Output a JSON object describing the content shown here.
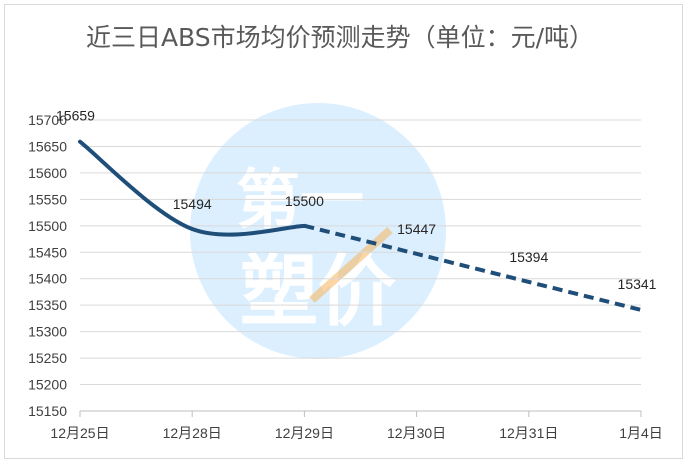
{
  "chart_data": {
    "type": "line",
    "title": "近三日ABS市场均价预测走势（单位：元/吨）",
    "categories": [
      "12月25日",
      "12月28日",
      "12月29日",
      "12月30日",
      "12月31日",
      "1月4日"
    ],
    "values": [
      15659,
      15494,
      15500,
      15447,
      15394,
      15341
    ],
    "data_labels": [
      "15659",
      "15494",
      "15500",
      "15447",
      "15394",
      "15341"
    ],
    "actual_segment": [
      0,
      2
    ],
    "forecast_segment": [
      2,
      5
    ],
    "ylim": [
      15150,
      15700
    ],
    "ystep": 50,
    "yticks": [
      "15150",
      "15200",
      "15250",
      "15300",
      "15350",
      "15400",
      "15450",
      "15500",
      "15550",
      "15600",
      "15650",
      "15700"
    ],
    "grid": true,
    "legend": "none",
    "line_color": "#1f4e79",
    "watermark": {
      "text_top": "第一",
      "text_bottom": "塑价",
      "color": "#dcefff",
      "accent": "#f7b45a"
    }
  }
}
